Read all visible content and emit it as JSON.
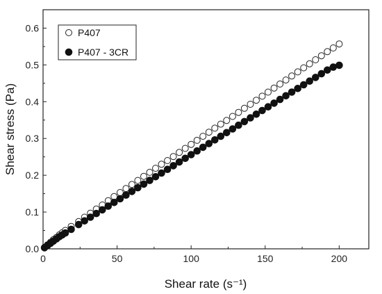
{
  "chart_data": {
    "type": "scatter",
    "xlabel": "Shear rate (s⁻¹)",
    "ylabel": "Shear stress (Pa)",
    "xlim": [
      0,
      220
    ],
    "ylim": [
      0,
      0.65
    ],
    "xticks": [
      "0",
      "50",
      "100",
      "150",
      "200"
    ],
    "yticks": [
      "0.0",
      "0.1",
      "0.2",
      "0.3",
      "0.4",
      "0.5",
      "0.6"
    ],
    "xtick_values": [
      0,
      50,
      100,
      150,
      200
    ],
    "ytick_values": [
      0,
      0.1,
      0.2,
      0.3,
      0.4,
      0.5,
      0.6
    ],
    "legend_position": "top-left",
    "grid": false,
    "series": [
      {
        "name": "P407",
        "marker": "open-circle",
        "x": [
          1,
          3,
          5,
          7,
          9,
          11,
          13,
          15,
          19,
          24,
          28,
          32,
          36,
          40,
          44,
          48,
          52,
          56,
          60,
          64,
          68,
          72,
          76,
          80,
          84,
          88,
          92,
          96,
          100,
          104,
          108,
          112,
          116,
          120,
          124,
          128,
          132,
          136,
          140,
          144,
          148,
          152,
          156,
          160,
          164,
          168,
          172,
          176,
          180,
          184,
          188,
          192,
          196,
          200
        ],
        "values": [
          0.004,
          0.011,
          0.018,
          0.025,
          0.031,
          0.038,
          0.044,
          0.05,
          0.061,
          0.074,
          0.086,
          0.097,
          0.108,
          0.119,
          0.131,
          0.142,
          0.153,
          0.164,
          0.175,
          0.186,
          0.197,
          0.208,
          0.219,
          0.23,
          0.24,
          0.251,
          0.262,
          0.273,
          0.284,
          0.295,
          0.306,
          0.317,
          0.328,
          0.339,
          0.349,
          0.36,
          0.371,
          0.382,
          0.393,
          0.404,
          0.415,
          0.426,
          0.437,
          0.448,
          0.459,
          0.47,
          0.481,
          0.492,
          0.503,
          0.514,
          0.525,
          0.536,
          0.546,
          0.557
        ]
      },
      {
        "name": "P407 - 3CR",
        "marker": "filled-circle",
        "x": [
          1,
          3,
          5,
          7,
          9,
          11,
          13,
          15,
          19,
          24,
          28,
          32,
          36,
          40,
          44,
          48,
          52,
          56,
          60,
          64,
          68,
          72,
          76,
          80,
          84,
          88,
          92,
          96,
          100,
          104,
          108,
          112,
          116,
          120,
          124,
          128,
          132,
          136,
          140,
          144,
          148,
          152,
          156,
          160,
          164,
          168,
          172,
          176,
          180,
          184,
          188,
          192,
          196,
          200
        ],
        "values": [
          0.003,
          0.009,
          0.015,
          0.021,
          0.027,
          0.033,
          0.038,
          0.043,
          0.053,
          0.066,
          0.076,
          0.086,
          0.096,
          0.106,
          0.116,
          0.126,
          0.136,
          0.146,
          0.156,
          0.166,
          0.176,
          0.186,
          0.196,
          0.206,
          0.216,
          0.226,
          0.236,
          0.246,
          0.256,
          0.266,
          0.276,
          0.286,
          0.296,
          0.306,
          0.316,
          0.326,
          0.336,
          0.346,
          0.356,
          0.366,
          0.376,
          0.386,
          0.396,
          0.406,
          0.416,
          0.426,
          0.436,
          0.446,
          0.456,
          0.466,
          0.476,
          0.486,
          0.494,
          0.499
        ]
      }
    ]
  }
}
